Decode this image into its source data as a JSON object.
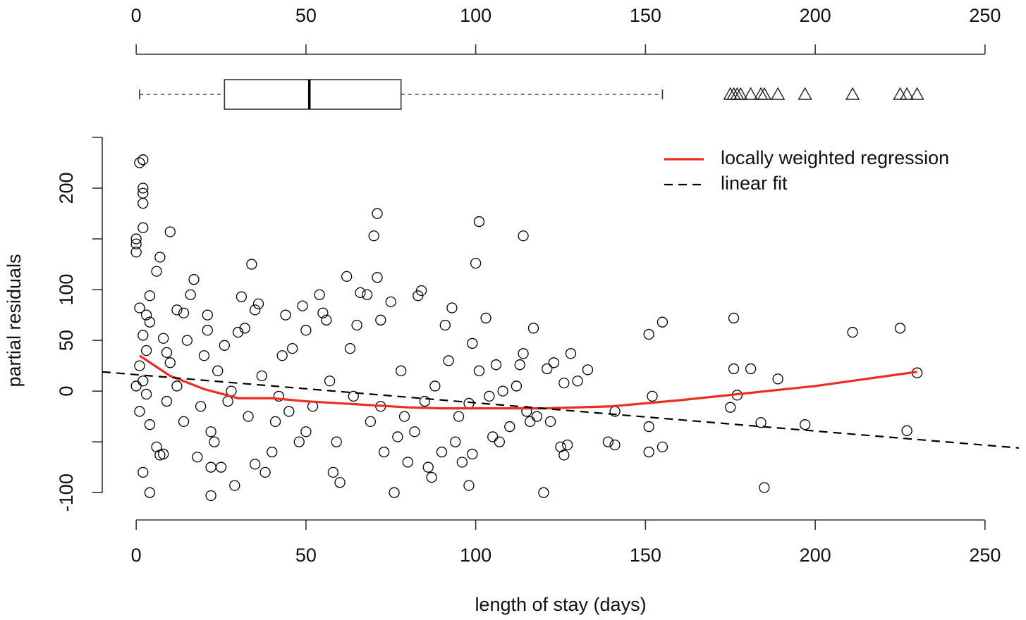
{
  "chart_data": [
    {
      "type": "boxplot",
      "min": 1,
      "q1": 26,
      "median": 51,
      "q3": 78,
      "max": 155,
      "outliers": [
        175,
        176,
        177,
        178,
        181,
        184,
        185,
        189,
        197,
        211,
        225,
        227,
        230
      ],
      "xlim": [
        -10,
        260
      ],
      "xticks": [
        0,
        50,
        100,
        150,
        200,
        250
      ]
    },
    {
      "type": "scatter",
      "xlabel": "length of stay (days)",
      "ylabel": "partial residuals",
      "xlim": [
        -10,
        260
      ],
      "xticks": [
        0,
        50,
        100,
        150,
        200,
        250
      ],
      "ylim": [
        -120,
        250
      ],
      "yticks": [
        -100,
        {
          "value": -50,
          "label": null
        },
        0,
        50,
        100,
        {
          "value": 150,
          "label": null
        },
        200,
        {
          "value": 250,
          "label": null
        }
      ],
      "legend": "top right",
      "color": "#000000",
      "x": [
        1,
        2,
        2,
        2,
        2,
        2,
        0,
        0,
        0,
        10,
        7,
        6,
        4,
        17,
        1,
        3,
        4,
        2,
        3,
        1,
        2,
        0,
        3,
        1,
        4,
        2,
        4,
        6,
        7,
        8,
        9,
        10,
        8,
        9,
        12,
        14,
        16,
        15,
        14,
        18,
        19,
        12,
        20,
        21,
        21,
        22,
        22,
        23,
        22,
        25,
        24,
        26,
        27,
        28,
        29,
        30,
        31,
        32,
        33,
        34,
        35,
        36,
        35,
        37,
        38,
        40,
        41,
        42,
        43,
        44,
        45,
        46,
        48,
        49,
        50,
        50,
        52,
        54,
        55,
        56,
        57,
        58,
        59,
        60,
        62,
        63,
        64,
        65,
        66,
        68,
        69,
        70,
        71,
        71,
        72,
        72,
        73,
        75,
        76,
        77,
        78,
        79,
        80,
        82,
        83,
        84,
        85,
        86,
        87,
        88,
        90,
        91,
        92,
        93,
        94,
        95,
        96,
        98,
        99,
        98,
        99,
        100,
        101,
        101,
        103,
        104,
        105,
        106,
        107,
        108,
        110,
        112,
        113,
        114,
        114,
        115,
        116,
        117,
        118,
        120,
        121,
        122,
        123,
        125,
        126,
        126,
        127,
        128,
        130,
        133,
        139,
        141,
        141,
        151,
        151,
        151,
        152,
        155,
        155,
        175,
        176,
        176,
        177,
        181,
        184,
        185,
        189,
        197,
        211,
        225,
        227,
        230
      ],
      "y": [
        225,
        228,
        200,
        195,
        185,
        161,
        150,
        145,
        137,
        157,
        132,
        118,
        94,
        110,
        82,
        75,
        68,
        55,
        40,
        25,
        10,
        5,
        -3,
        -20,
        -33,
        -80,
        -100,
        -55,
        -63,
        -62,
        -10,
        28,
        52,
        38,
        80,
        77,
        95,
        50,
        -30,
        -65,
        -15,
        5,
        35,
        75,
        60,
        -40,
        -75,
        -50,
        -103,
        -75,
        20,
        45,
        -10,
        0,
        -93,
        58,
        93,
        62,
        -25,
        125,
        80,
        86,
        -72,
        15,
        -80,
        -60,
        -30,
        -5,
        35,
        75,
        -20,
        42,
        -50,
        84,
        60,
        -40,
        -15,
        95,
        77,
        70,
        10,
        -80,
        -50,
        -90,
        113,
        42,
        -5,
        65,
        97,
        95,
        -30,
        153,
        175,
        112,
        70,
        -15,
        -60,
        88,
        -100,
        -45,
        20,
        -25,
        -70,
        -40,
        94,
        99,
        -10,
        -75,
        -85,
        5,
        -60,
        65,
        30,
        82,
        -50,
        -25,
        -70,
        -12,
        47,
        -93,
        -62,
        126,
        167,
        20,
        72,
        -5,
        -45,
        26,
        -50,
        0,
        -35,
        5,
        26,
        153,
        37,
        -20,
        -30,
        62,
        -25,
        -100,
        22,
        -30,
        28,
        -55,
        -63,
        8,
        -53,
        37,
        10,
        21,
        -50,
        -20,
        -53,
        56,
        -35,
        -60,
        -5,
        68,
        -55,
        -16,
        72,
        22,
        -4,
        22,
        -31,
        -95,
        12,
        -33,
        58,
        62,
        -39,
        18
      ],
      "series": [
        {
          "name": "locally weighted regression",
          "color": "#ee2c1f",
          "dash": false,
          "x": [
            1,
            10,
            20,
            30,
            40,
            50,
            60,
            70,
            80,
            90,
            100,
            120,
            140,
            160,
            180,
            200,
            215,
            230
          ],
          "y": [
            35,
            15,
            2,
            -7,
            -7,
            -10,
            -12,
            -14,
            -16,
            -17,
            -17,
            -17,
            -15,
            -9,
            -2,
            5,
            12,
            19
          ]
        },
        {
          "name": "linear fit",
          "color": "#000000",
          "dash": true,
          "x": [
            -10,
            260
          ],
          "y": [
            19,
            -56
          ]
        }
      ]
    }
  ]
}
